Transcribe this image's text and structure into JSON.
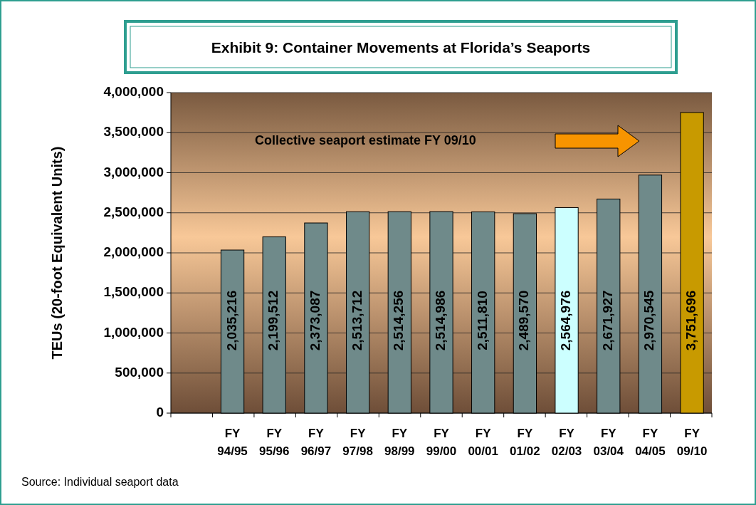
{
  "chart_data": {
    "type": "bar",
    "title": "Exhibit 9: Container Movements at Florida’s Seaports",
    "ylabel": "TEUs (20-foot Equivalent Units)",
    "categories": [
      null,
      "FY 94/95",
      "FY 95/96",
      "FY 96/97",
      "FY 97/98",
      "FY 98/99",
      "FY 99/00",
      "FY 00/01",
      "FY 01/02",
      "FY 02/03",
      "FY 03/04",
      "FY 04/05",
      "FY 09/10"
    ],
    "values": [
      null,
      2035216,
      2199512,
      2373087,
      2513712,
      2514256,
      2514986,
      2511810,
      2489570,
      2564976,
      2671927,
      2970545,
      3751696
    ],
    "colors": [
      "#6f8a8a",
      "#6f8a8a",
      "#6f8a8a",
      "#6f8a8a",
      "#6f8a8a",
      "#6f8a8a",
      "#6f8a8a",
      "#6f8a8a",
      "#6f8a8a",
      "#ccffff",
      "#6f8a8a",
      "#6f8a8a",
      "#c89a00"
    ],
    "value_labels": [
      null,
      "2,035,216",
      "2,199,512",
      "2,373,087",
      "2,513,712",
      "2,514,256",
      "2,514,986",
      "2,511,810",
      "2,489,570",
      "2,564,976",
      "2,671,927",
      "2,970,545",
      "3,751,696"
    ],
    "ylim": [
      0,
      4000000
    ],
    "yticks": [
      {
        "value": 0,
        "label": "0"
      },
      {
        "value": 500000,
        "label": "500,000"
      },
      {
        "value": 1000000,
        "label": "1,000,000"
      },
      {
        "value": 1500000,
        "label": "1,500,000"
      },
      {
        "value": 2000000,
        "label": "2,000,000"
      },
      {
        "value": 2500000,
        "label": "2,500,000"
      },
      {
        "value": 3000000,
        "label": "3,000,000"
      },
      {
        "value": 3500000,
        "label": "3,500,000"
      },
      {
        "value": 4000000,
        "label": "4,000,000"
      }
    ],
    "grid": "y",
    "annotations": [
      "Collective seaport estimate FY 09/10",
      "Source: Individual seaport data"
    ]
  }
}
